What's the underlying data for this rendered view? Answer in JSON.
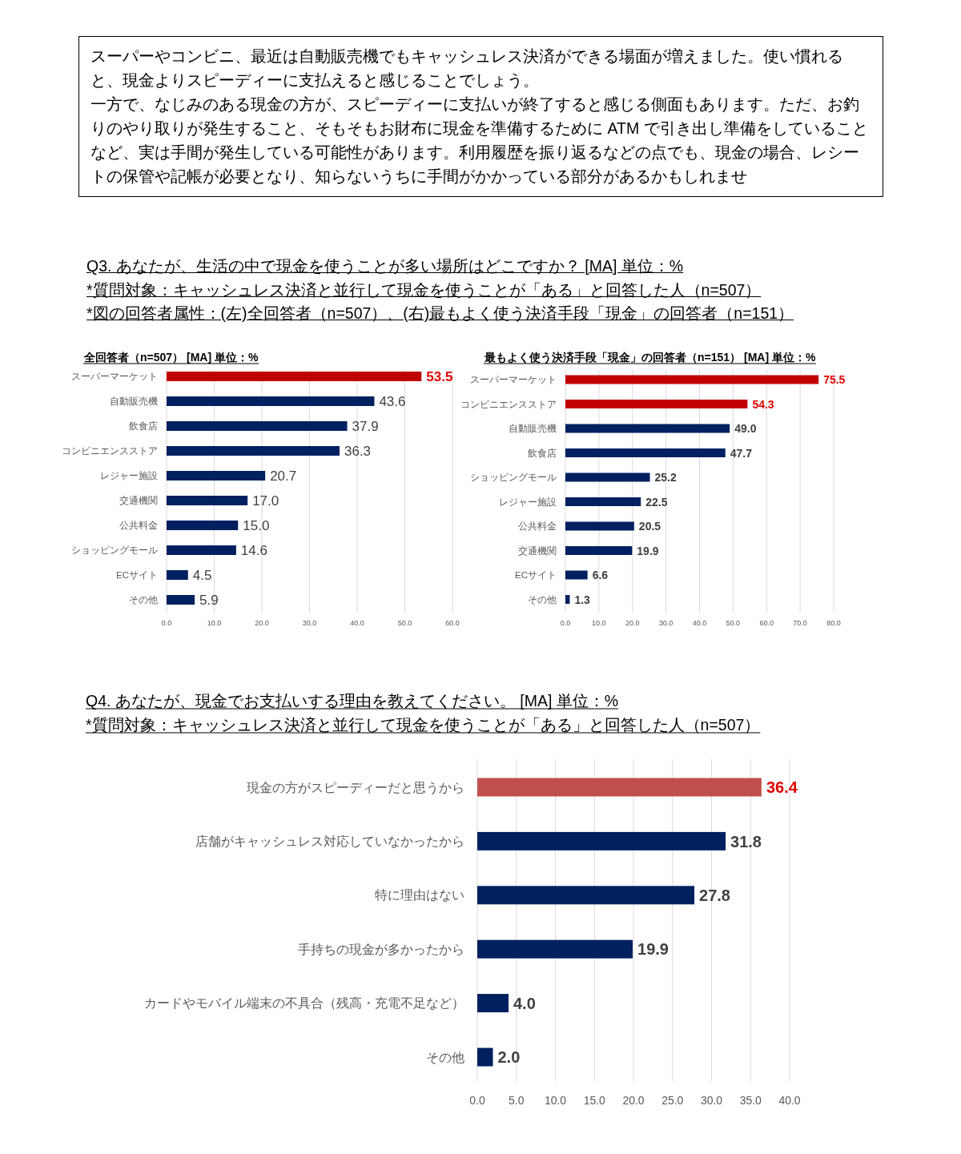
{
  "chart_data": [
    {
      "type": "other",
      "annotations": [
        "スーパーやコンビニ、最近は自動販売機でもキャッシュレス決済ができる場面が増えました。使い慣れると、現金よりスピーディーに支払えると感じることでしょう。",
        "一方で、なじみのある現金の方が、スピーディーに支払いが終了すると感じる側面もあります。ただ、お釣りのやり取りが発生すること、そもそもお財布に現金を準備するために ATM で引き出し準備をしていることなど、実は手間が発生している可能性があります。利用履歴を振り返るなどの点でも、現金の場合、レシートの保管や記帳が必要となり、知らないうちに手間がかかっている部分があるかもしれませ"
      ]
    },
    {
      "type": "other",
      "annotations": [
        "Q3. あなたが、生活の中で現金を使うことが多い場所はどこですか？ [MA] 単位：%",
        "*質問対象：キャッシュレス決済と並行して現金を使うことが「ある」と回答した人（n=507）",
        "*図の回答者属性：(左)全回答者（n=507）、(右)最もよく使う決済手段「現金」の回答者（n=151）"
      ]
    },
    {
      "type": "bar",
      "orientation": "horizontal",
      "title": "全回答者（n=507） [MA] 単位：%",
      "categories": [
        "スーパーマーケット",
        "自動販売機",
        "飲食店",
        "コンビニエンスストア",
        "レジャー施設",
        "交通機関",
        "公共料金",
        "ショッピングモール",
        "ECサイト",
        "その他"
      ],
      "values": [
        53.5,
        43.6,
        37.9,
        36.3,
        20.7,
        17.0,
        15.0,
        14.6,
        4.5,
        5.9
      ],
      "value_labels": [
        "53.5",
        "43.6",
        "37.9",
        "36.3",
        "20.7",
        "17.0",
        "15.0",
        "14.6",
        "4.5",
        "5.9"
      ],
      "colors": [
        "#c00000",
        "#002060",
        "#002060",
        "#002060",
        "#002060",
        "#002060",
        "#002060",
        "#002060",
        "#002060",
        "#002060"
      ],
      "xlim": [
        0,
        60
      ],
      "xticks": [
        {
          "value": 0,
          "label": "0.0"
        },
        {
          "value": 10,
          "label": "10.0"
        },
        {
          "value": 20,
          "label": "20.0"
        },
        {
          "value": 30,
          "label": "30.0"
        },
        {
          "value": 40,
          "label": "40.0"
        },
        {
          "value": 50,
          "label": "50.0"
        },
        {
          "value": 60,
          "label": "60.0"
        }
      ],
      "grid": "x"
    },
    {
      "type": "bar",
      "orientation": "horizontal",
      "title": "最もよく使う決済手段「現金」の回答者（n=151） [MA] 単位：%",
      "categories": [
        "スーパーマーケット",
        "コンビニエンスストア",
        "自動販売機",
        "飲食店",
        "ショッピングモール",
        "レジャー施設",
        "公共料金",
        "交通機関",
        "ECサイト",
        "その他"
      ],
      "values": [
        75.5,
        54.3,
        49.0,
        47.7,
        25.2,
        22.5,
        20.5,
        19.9,
        6.6,
        1.3
      ],
      "value_labels": [
        "75.5",
        "54.3",
        "49.0",
        "47.7",
        "25.2",
        "22.5",
        "20.5",
        "19.9",
        "6.6",
        "1.3"
      ],
      "colors": [
        "#c00000",
        "#c00000",
        "#002060",
        "#002060",
        "#002060",
        "#002060",
        "#002060",
        "#002060",
        "#002060",
        "#002060"
      ],
      "xlim": [
        0,
        80
      ],
      "xticks": [
        {
          "value": 0,
          "label": "0.0"
        },
        {
          "value": 10,
          "label": "10.0"
        },
        {
          "value": 20,
          "label": "20.0"
        },
        {
          "value": 30,
          "label": "30.0"
        },
        {
          "value": 40,
          "label": "40.0"
        },
        {
          "value": 50,
          "label": "50.0"
        },
        {
          "value": 60,
          "label": "60.0"
        },
        {
          "value": 70,
          "label": "70.0"
        },
        {
          "value": 80,
          "label": "80.0"
        }
      ],
      "grid": "x"
    },
    {
      "type": "bar",
      "orientation": "horizontal",
      "title": "Q4. あなたが、現金でお支払いする理由を教えてください。 [MA] 単位：%",
      "subtitle": "*質問対象：キャッシュレス決済と並行して現金を使うことが「ある」と回答した人（n=507）",
      "categories": [
        "現金の方がスピーディーだと思うから",
        "店舗がキャッシュレス対応していなかったから",
        "特に理由はない",
        "手持ちの現金が多かったから",
        "カードやモバイル端末の不具合（残高・充電不足など）",
        "その他"
      ],
      "values": [
        36.4,
        31.8,
        27.8,
        19.9,
        4.0,
        2.0
      ],
      "value_labels": [
        "36.4",
        "31.8",
        "27.8",
        "19.9",
        "4.0",
        "2.0"
      ],
      "colors": [
        "#c0504d",
        "#002060",
        "#002060",
        "#002060",
        "#002060",
        "#002060"
      ],
      "xlim": [
        0,
        40
      ],
      "xticks": [
        {
          "value": 0,
          "label": "0.0"
        },
        {
          "value": 5,
          "label": "5.0"
        },
        {
          "value": 10,
          "label": "10.0"
        },
        {
          "value": 15,
          "label": "15.0"
        },
        {
          "value": 20,
          "label": "20.0"
        },
        {
          "value": 25,
          "label": "25.0"
        },
        {
          "value": 30,
          "label": "30.0"
        },
        {
          "value": 35,
          "label": "35.0"
        },
        {
          "value": 40,
          "label": "40.0"
        }
      ],
      "grid": "x"
    }
  ]
}
